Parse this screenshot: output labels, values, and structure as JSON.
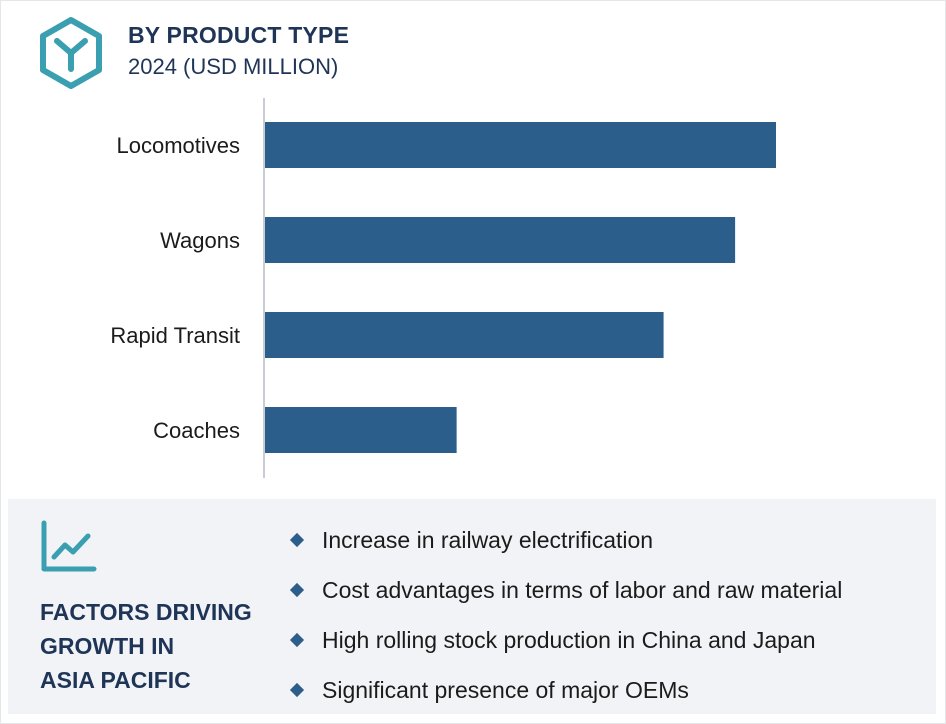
{
  "header": {
    "title": "BY PRODUCT TYPE",
    "subtitle": "2024 (USD MILLION)",
    "logo_icon": "cube-y-icon"
  },
  "colors": {
    "bar": "#2c5e8c",
    "title": "#1f3557",
    "logo": "#3a9fb0",
    "panel_background": "#f2f3f6"
  },
  "chart_data": {
    "type": "bar",
    "orientation": "horizontal",
    "categories": [
      "Locomotives",
      "Wagons",
      "Rapid Transit",
      "Coaches"
    ],
    "values": [
      100,
      92,
      78,
      37.5
    ],
    "title": "BY PRODUCT TYPE",
    "subtitle": "2024 (USD MILLION)",
    "xlabel": "",
    "ylabel": "",
    "xlim": [
      0,
      100
    ],
    "grid": false,
    "legend": "none",
    "value_axis_shown": false
  },
  "factors": {
    "icon": "line-chart-icon",
    "title_lines": [
      "FACTORS DRIVING",
      "GROWTH IN",
      "ASIA PACIFIC"
    ],
    "items": [
      "Increase in railway electrification",
      "Cost advantages in terms of labor and raw material",
      "High rolling stock production in China and Japan",
      "Significant presence of major OEMs"
    ]
  }
}
